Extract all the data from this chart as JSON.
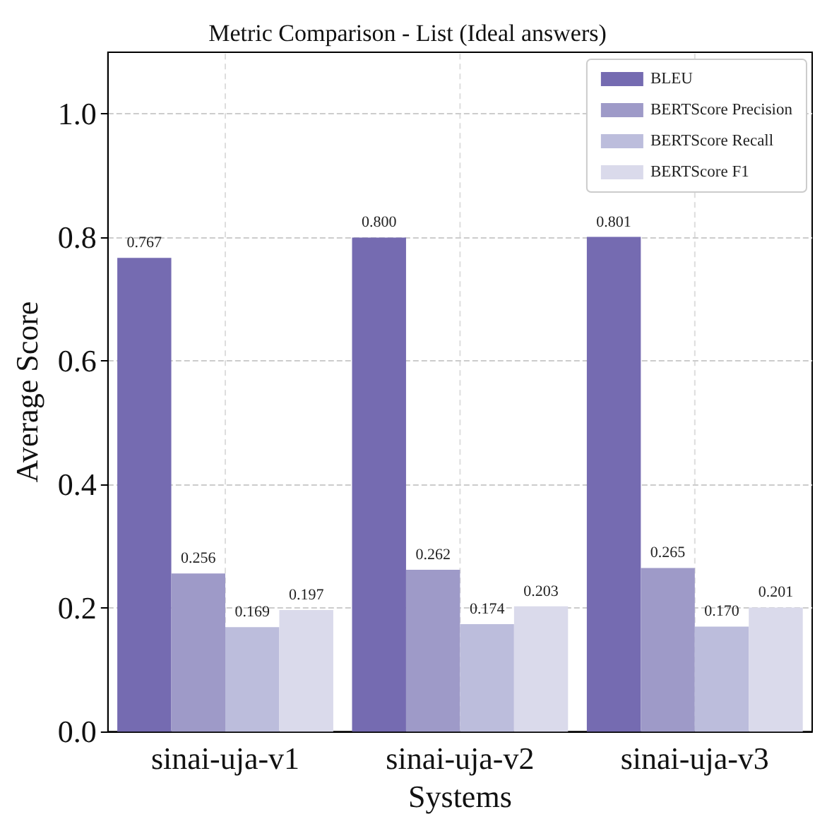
{
  "chart_data": {
    "type": "bar",
    "title": "Metric Comparison - List (Ideal answers)",
    "xlabel": "Systems",
    "ylabel": "Average Score",
    "categories": [
      "sinai-uja-v1",
      "sinai-uja-v2",
      "sinai-uja-v3"
    ],
    "series": [
      {
        "name": "BLEU",
        "color": "#756bb1",
        "values": [
          0.767,
          0.8,
          0.801
        ],
        "value_labels": [
          "0.767",
          "0.800",
          "0.801"
        ]
      },
      {
        "name": "BERTScore Precision",
        "color": "#9e9ac8",
        "values": [
          0.256,
          0.262,
          0.265
        ],
        "value_labels": [
          "0.256",
          "0.262",
          "0.265"
        ]
      },
      {
        "name": "BERTScore Recall",
        "color": "#bcbddc",
        "values": [
          0.169,
          0.174,
          0.17
        ],
        "value_labels": [
          "0.169",
          "0.174",
          "0.170"
        ]
      },
      {
        "name": "BERTScore F1",
        "color": "#dadaeb",
        "values": [
          0.197,
          0.203,
          0.201
        ],
        "value_labels": [
          "0.197",
          "0.203",
          "0.201"
        ]
      }
    ],
    "ylim": [
      0,
      1.1
    ],
    "yticks": [
      {
        "value": 0,
        "label": "0.0"
      },
      {
        "value": 0.2,
        "label": "0.2"
      },
      {
        "value": 0.4,
        "label": "0.4"
      },
      {
        "value": 0.6,
        "label": "0.6"
      },
      {
        "value": 0.8,
        "label": "0.8"
      },
      {
        "value": 1.0,
        "label": "1.0"
      }
    ],
    "grid": true,
    "legend": "top right"
  }
}
